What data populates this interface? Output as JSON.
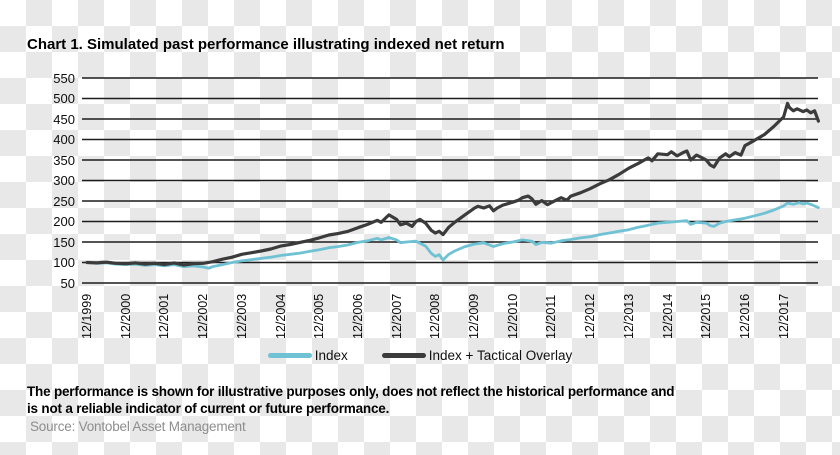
{
  "title": "Chart 1. Simulated past performance illustrating indexed net return",
  "legend": [
    {
      "label": "Index",
      "color": "#6fc2d3"
    },
    {
      "label": "Index + Tactical Overlay",
      "color": "#3b3b3b"
    }
  ],
  "footnote": {
    "line1": "The performance is shown for illustrative purposes only, does not reflect the historical performance and",
    "line2": "is not a reliable indicator of current or future performance."
  },
  "source": "Source: Vontobel Asset Management",
  "colors": {
    "gridline": "#1c1c1c",
    "index_line": "#6fc2d3",
    "overlay_line": "#3b3b3b",
    "checker_gray": "#e8e8e8"
  },
  "chart_data": {
    "type": "line",
    "title": "Chart 1. Simulated past performance illustrating indexed net return",
    "xlabel": "",
    "ylabel": "",
    "ylim": [
      50,
      550
    ],
    "ytick_step": 50,
    "yticks": [
      550,
      500,
      450,
      400,
      350,
      300,
      250,
      200,
      150,
      100,
      50
    ],
    "x_tick_labels": [
      "12/1999",
      "12/2000",
      "12/2001",
      "12/2002",
      "12/2003",
      "12/2004",
      "12/2005",
      "12/2006",
      "12/2007",
      "12/2008",
      "12/2009",
      "12/2010",
      "12/2011",
      "12/2012",
      "12/2013",
      "12/2014",
      "12/2015",
      "12/2016",
      "12/2017"
    ],
    "x_unit": "years since 12/1999 (monthly simulated data, extends ~11 months past last tick)",
    "grid": "horizontal",
    "legend_position": "bottom",
    "series": [
      {
        "name": "Index",
        "color": "#6fc2d3",
        "points": [
          [
            0,
            100
          ],
          [
            0.25,
            98
          ],
          [
            0.5,
            99
          ],
          [
            0.75,
            96
          ],
          [
            1,
            95
          ],
          [
            1.25,
            96
          ],
          [
            1.5,
            93
          ],
          [
            1.75,
            95
          ],
          [
            2,
            92
          ],
          [
            2.25,
            95
          ],
          [
            2.5,
            90
          ],
          [
            2.75,
            92
          ],
          [
            3,
            89
          ],
          [
            3.15,
            86
          ],
          [
            3.25,
            90
          ],
          [
            3.5,
            95
          ],
          [
            3.75,
            100
          ],
          [
            4,
            104
          ],
          [
            4.25,
            107
          ],
          [
            4.5,
            110
          ],
          [
            4.75,
            113
          ],
          [
            5,
            117
          ],
          [
            5.25,
            120
          ],
          [
            5.5,
            123
          ],
          [
            5.75,
            127
          ],
          [
            6,
            131
          ],
          [
            6.25,
            136
          ],
          [
            6.5,
            139
          ],
          [
            6.75,
            143
          ],
          [
            7,
            149
          ],
          [
            7.25,
            153
          ],
          [
            7.5,
            159
          ],
          [
            7.6,
            155
          ],
          [
            7.8,
            161
          ],
          [
            8,
            155
          ],
          [
            8.1,
            148
          ],
          [
            8.25,
            150
          ],
          [
            8.5,
            152
          ],
          [
            8.75,
            140
          ],
          [
            8.9,
            122
          ],
          [
            9,
            115
          ],
          [
            9.1,
            119
          ],
          [
            9.2,
            106
          ],
          [
            9.35,
            120
          ],
          [
            9.5,
            128
          ],
          [
            9.75,
            138
          ],
          [
            10,
            145
          ],
          [
            10.25,
            148
          ],
          [
            10.5,
            139
          ],
          [
            10.75,
            146
          ],
          [
            11,
            150
          ],
          [
            11.25,
            155
          ],
          [
            11.5,
            152
          ],
          [
            11.6,
            144
          ],
          [
            11.75,
            149
          ],
          [
            12,
            147
          ],
          [
            12.25,
            153
          ],
          [
            12.5,
            156
          ],
          [
            12.75,
            160
          ],
          [
            13,
            163
          ],
          [
            13.25,
            168
          ],
          [
            13.5,
            172
          ],
          [
            13.75,
            176
          ],
          [
            14,
            180
          ],
          [
            14.25,
            186
          ],
          [
            14.5,
            191
          ],
          [
            14.75,
            196
          ],
          [
            15,
            198
          ],
          [
            15.25,
            200
          ],
          [
            15.5,
            202
          ],
          [
            15.6,
            193
          ],
          [
            15.75,
            198
          ],
          [
            16,
            196
          ],
          [
            16.1,
            190
          ],
          [
            16.2,
            188
          ],
          [
            16.35,
            196
          ],
          [
            16.5,
            200
          ],
          [
            16.75,
            204
          ],
          [
            17,
            208
          ],
          [
            17.25,
            214
          ],
          [
            17.5,
            220
          ],
          [
            17.75,
            228
          ],
          [
            18,
            238
          ],
          [
            18.1,
            245
          ],
          [
            18.25,
            242
          ],
          [
            18.4,
            246
          ],
          [
            18.5,
            243
          ],
          [
            18.6,
            245
          ],
          [
            18.75,
            240
          ],
          [
            18.9,
            234
          ]
        ]
      },
      {
        "name": "Index + Tactical Overlay",
        "color": "#3b3b3b",
        "points": [
          [
            0,
            100
          ],
          [
            0.25,
            99
          ],
          [
            0.5,
            101
          ],
          [
            0.75,
            98
          ],
          [
            1,
            97
          ],
          [
            1.25,
            99
          ],
          [
            1.5,
            96
          ],
          [
            1.75,
            98
          ],
          [
            2,
            95
          ],
          [
            2.25,
            99
          ],
          [
            2.5,
            94
          ],
          [
            2.75,
            97
          ],
          [
            3,
            98
          ],
          [
            3.25,
            102
          ],
          [
            3.5,
            108
          ],
          [
            3.75,
            113
          ],
          [
            4,
            120
          ],
          [
            4.25,
            124
          ],
          [
            4.5,
            128
          ],
          [
            4.75,
            133
          ],
          [
            5,
            140
          ],
          [
            5.25,
            144
          ],
          [
            5.5,
            149
          ],
          [
            5.75,
            154
          ],
          [
            6,
            160
          ],
          [
            6.25,
            167
          ],
          [
            6.5,
            171
          ],
          [
            6.75,
            176
          ],
          [
            7,
            185
          ],
          [
            7.25,
            193
          ],
          [
            7.5,
            203
          ],
          [
            7.6,
            198
          ],
          [
            7.8,
            216
          ],
          [
            8,
            205
          ],
          [
            8.1,
            192
          ],
          [
            8.25,
            196
          ],
          [
            8.4,
            188
          ],
          [
            8.5,
            200
          ],
          [
            8.6,
            205
          ],
          [
            8.75,
            196
          ],
          [
            8.9,
            178
          ],
          [
            9,
            172
          ],
          [
            9.1,
            176
          ],
          [
            9.2,
            168
          ],
          [
            9.35,
            186
          ],
          [
            9.5,
            198
          ],
          [
            9.75,
            215
          ],
          [
            10,
            232
          ],
          [
            10.1,
            237
          ],
          [
            10.25,
            233
          ],
          [
            10.4,
            238
          ],
          [
            10.5,
            226
          ],
          [
            10.6,
            233
          ],
          [
            10.75,
            240
          ],
          [
            11,
            247
          ],
          [
            11.15,
            252
          ],
          [
            11.25,
            258
          ],
          [
            11.4,
            262
          ],
          [
            11.5,
            255
          ],
          [
            11.6,
            242
          ],
          [
            11.75,
            251
          ],
          [
            11.9,
            241
          ],
          [
            12,
            246
          ],
          [
            12.25,
            258
          ],
          [
            12.4,
            252
          ],
          [
            12.5,
            262
          ],
          [
            12.75,
            270
          ],
          [
            13,
            280
          ],
          [
            13.25,
            292
          ],
          [
            13.5,
            302
          ],
          [
            13.75,
            315
          ],
          [
            14,
            330
          ],
          [
            14.25,
            342
          ],
          [
            14.5,
            355
          ],
          [
            14.6,
            348
          ],
          [
            14.75,
            365
          ],
          [
            15,
            363
          ],
          [
            15.1,
            370
          ],
          [
            15.25,
            360
          ],
          [
            15.4,
            368
          ],
          [
            15.5,
            372
          ],
          [
            15.6,
            350
          ],
          [
            15.75,
            362
          ],
          [
            15.9,
            355
          ],
          [
            16,
            350
          ],
          [
            16.1,
            338
          ],
          [
            16.2,
            333
          ],
          [
            16.35,
            355
          ],
          [
            16.5,
            365
          ],
          [
            16.6,
            358
          ],
          [
            16.75,
            368
          ],
          [
            16.9,
            362
          ],
          [
            17,
            385
          ],
          [
            17.25,
            398
          ],
          [
            17.5,
            412
          ],
          [
            17.75,
            432
          ],
          [
            18,
            455
          ],
          [
            18.1,
            488
          ],
          [
            18.15,
            478
          ],
          [
            18.25,
            470
          ],
          [
            18.35,
            475
          ],
          [
            18.5,
            468
          ],
          [
            18.6,
            472
          ],
          [
            18.7,
            465
          ],
          [
            18.8,
            470
          ],
          [
            18.9,
            445
          ]
        ]
      }
    ]
  }
}
